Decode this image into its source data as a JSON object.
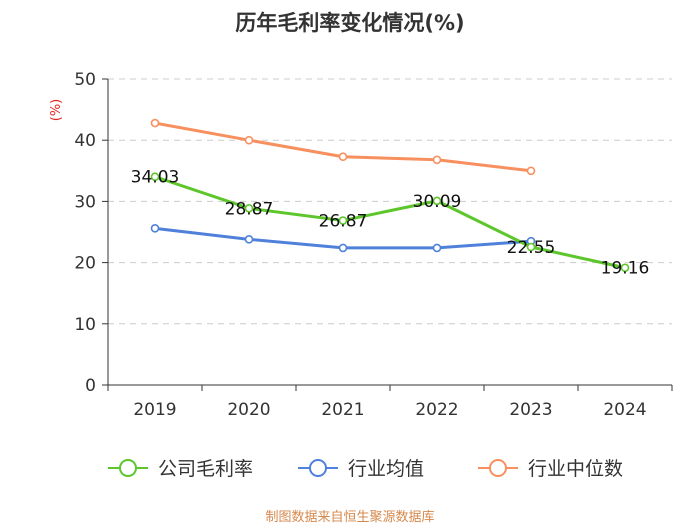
{
  "chart_data": {
    "type": "line",
    "title": "历年毛利率变化情况(%)",
    "ylabel": "(%)",
    "xlabel": "",
    "ylim": [
      0,
      50
    ],
    "yticks": [
      0,
      10,
      20,
      30,
      40,
      50
    ],
    "categories": [
      "2019",
      "2020",
      "2021",
      "2022",
      "2023",
      "2024"
    ],
    "series": [
      {
        "name": "公司毛利率",
        "color": "#5dc62b",
        "values": [
          34.03,
          28.87,
          26.87,
          30.09,
          22.55,
          19.16
        ],
        "labels": [
          "34.03",
          "28.87",
          "26.87",
          "30.09",
          "22.55",
          "19.16"
        ]
      },
      {
        "name": "行业均值",
        "color": "#4f81db",
        "values": [
          25.6,
          23.8,
          22.4,
          22.4,
          23.5,
          null
        ]
      },
      {
        "name": "行业中位数",
        "color": "#f7905e",
        "values": [
          42.8,
          40.0,
          37.3,
          36.8,
          35.0,
          null
        ]
      }
    ],
    "legend": "bottom",
    "grid": true
  },
  "source": "制图数据来自恒生聚源数据库",
  "colors": {
    "axis": "#333333",
    "grid": "#cccccc",
    "ylabel": "#e0261f",
    "title": "#333333"
  }
}
